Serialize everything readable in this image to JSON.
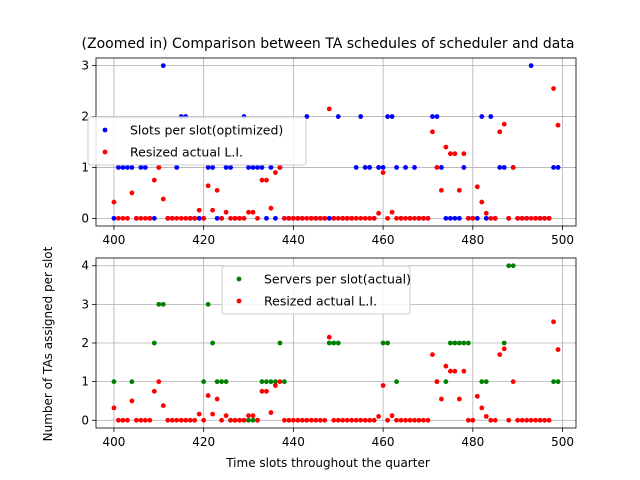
{
  "chart_data": [
    {
      "type": "scatter",
      "title": "(Zoomed in) Comparison between TA schedules of scheduler and data",
      "xlabel": "",
      "ylabel": "",
      "xlim": [
        396,
        503
      ],
      "ylim": [
        -0.15,
        3.15
      ],
      "xticks": [
        400,
        420,
        440,
        460,
        480,
        500
      ],
      "yticks": [
        0,
        1,
        2,
        3
      ],
      "grid": true,
      "legend": "center-left",
      "series": [
        {
          "name": "Slots per slot(optimized)",
          "color": "#0000ff",
          "x": [
            400,
            401,
            402,
            403,
            404,
            405,
            406,
            407,
            408,
            409,
            410,
            411,
            412,
            413,
            414,
            415,
            416,
            417,
            418,
            419,
            420,
            421,
            422,
            423,
            424,
            425,
            426,
            427,
            428,
            429,
            430,
            431,
            432,
            433,
            434,
            435,
            436,
            437,
            438,
            439,
            440,
            441,
            442,
            443,
            444,
            445,
            446,
            447,
            448,
            449,
            450,
            451,
            452,
            453,
            454,
            455,
            456,
            457,
            458,
            459,
            460,
            461,
            462,
            463,
            464,
            465,
            466,
            467,
            468,
            469,
            470,
            471,
            472,
            473,
            474,
            475,
            476,
            477,
            478,
            479,
            480,
            481,
            482,
            483,
            484,
            485,
            486,
            487,
            488,
            489,
            490,
            491,
            492,
            493,
            494,
            495,
            496,
            497,
            498,
            499
          ],
          "y": [
            0,
            1,
            1,
            1,
            1,
            0,
            1,
            1,
            0,
            0,
            1,
            3,
            0,
            0,
            1,
            2,
            2,
            0,
            0,
            0,
            0,
            1,
            1,
            0,
            0,
            1,
            1,
            0,
            0,
            2,
            1,
            1,
            1,
            1,
            0,
            1,
            0,
            1,
            0,
            0,
            0,
            0,
            0,
            2,
            0,
            0,
            0,
            0,
            0,
            0,
            2,
            0,
            0,
            0,
            1,
            2,
            1,
            1,
            0,
            1,
            1,
            2,
            2,
            1,
            0,
            1,
            0,
            1,
            0,
            0,
            0,
            2,
            2,
            1,
            0,
            0,
            0,
            0,
            1,
            0,
            0,
            0,
            2,
            0,
            2,
            0,
            1,
            1,
            0,
            1,
            0,
            0,
            0,
            3,
            0,
            0,
            0,
            0,
            1,
            1
          ]
        },
        {
          "name": "Resized actual L.I.",
          "color": "#ff0000",
          "x": [
            400,
            401,
            402,
            403,
            404,
            405,
            406,
            407,
            408,
            409,
            410,
            411,
            412,
            413,
            414,
            415,
            416,
            417,
            418,
            419,
            420,
            421,
            422,
            423,
            424,
            425,
            426,
            427,
            428,
            429,
            430,
            431,
            432,
            433,
            434,
            435,
            436,
            437,
            438,
            439,
            440,
            441,
            442,
            443,
            444,
            445,
            446,
            447,
            448,
            449,
            450,
            451,
            452,
            453,
            454,
            455,
            456,
            457,
            458,
            459,
            460,
            461,
            462,
            463,
            464,
            465,
            466,
            467,
            468,
            469,
            470,
            471,
            472,
            473,
            474,
            475,
            476,
            477,
            478,
            479,
            480,
            481,
            482,
            483,
            484,
            485,
            486,
            487,
            488,
            489,
            490,
            491,
            492,
            493,
            494,
            495,
            496,
            497,
            498,
            499
          ],
          "y": [
            0.32,
            0,
            0,
            0,
            0.5,
            0,
            0,
            0,
            0,
            0.75,
            1,
            0.38,
            0,
            0,
            0,
            0,
            0,
            0,
            0,
            0.16,
            0,
            0.64,
            0.16,
            0.55,
            0,
            0.12,
            0,
            0,
            0,
            0,
            0.12,
            0.12,
            0,
            0.75,
            0.75,
            0.2,
            0.9,
            1,
            0,
            0,
            0,
            0,
            0,
            0,
            0,
            0,
            0,
            0,
            2.15,
            0,
            0,
            0,
            0,
            0,
            0,
            0,
            0,
            0,
            0,
            0.1,
            0.9,
            0,
            0.12,
            0,
            0,
            0,
            0,
            0,
            0,
            0,
            0,
            1.7,
            1,
            0.55,
            1.4,
            1.27,
            1.27,
            0.55,
            1.27,
            0,
            0,
            0.62,
            0.32,
            0.1,
            0,
            0,
            1.7,
            1.85,
            0,
            1,
            0,
            0,
            0,
            0,
            0,
            0,
            0,
            0,
            2.55,
            1.83
          ]
        }
      ]
    },
    {
      "type": "scatter",
      "title": "",
      "xlabel": "Time slots throughout the quarter",
      "ylabel": "Number of TAs assigned per slot",
      "xlim": [
        396,
        503
      ],
      "ylim": [
        -0.2,
        4.2
      ],
      "xticks": [
        400,
        420,
        440,
        460,
        480,
        500
      ],
      "yticks": [
        0,
        1,
        2,
        3,
        4
      ],
      "grid": true,
      "legend": "top-center",
      "series": [
        {
          "name": "Servers per slot(actual)",
          "color": "#008000",
          "x": [
            400,
            404,
            409,
            410,
            411,
            420,
            421,
            422,
            423,
            424,
            425,
            426,
            427,
            428,
            429,
            430,
            431,
            432,
            433,
            434,
            435,
            436,
            437,
            438,
            448,
            449,
            450,
            460,
            461,
            463,
            472,
            474,
            475,
            476,
            477,
            478,
            479,
            482,
            483,
            487,
            488,
            489,
            498,
            499
          ],
          "y": [
            1,
            1,
            2,
            3,
            3,
            1,
            3,
            2,
            1,
            1,
            1,
            0,
            0,
            0,
            0,
            0,
            0,
            0,
            1,
            1,
            1,
            1,
            2,
            1,
            2,
            2,
            2,
            2,
            2,
            1,
            1,
            1,
            2,
            2,
            2,
            2,
            2,
            1,
            1,
            2,
            4,
            4,
            1,
            1
          ]
        },
        {
          "name": "Resized actual L.I.",
          "color": "#ff0000",
          "x": [
            400,
            401,
            402,
            403,
            404,
            405,
            406,
            407,
            408,
            409,
            410,
            411,
            412,
            413,
            414,
            415,
            416,
            417,
            418,
            419,
            420,
            421,
            422,
            423,
            424,
            425,
            426,
            427,
            428,
            429,
            430,
            431,
            432,
            433,
            434,
            435,
            436,
            437,
            438,
            439,
            440,
            441,
            442,
            443,
            444,
            445,
            446,
            447,
            448,
            449,
            450,
            451,
            452,
            453,
            454,
            455,
            456,
            457,
            458,
            459,
            460,
            461,
            462,
            463,
            464,
            465,
            466,
            467,
            468,
            469,
            470,
            471,
            472,
            473,
            474,
            475,
            476,
            477,
            478,
            479,
            480,
            481,
            482,
            483,
            484,
            485,
            486,
            487,
            488,
            489,
            490,
            491,
            492,
            493,
            494,
            495,
            496,
            497,
            498,
            499
          ],
          "y": [
            0.32,
            0,
            0,
            0,
            0.5,
            0,
            0,
            0,
            0,
            0.75,
            1,
            0.38,
            0,
            0,
            0,
            0,
            0,
            0,
            0,
            0.16,
            0,
            0.64,
            0.16,
            0.55,
            0,
            0.12,
            0,
            0,
            0,
            0,
            0.12,
            0.12,
            0,
            0.75,
            0.75,
            0.2,
            0.9,
            1,
            0,
            0,
            0,
            0,
            0,
            0,
            0,
            0,
            0,
            0,
            2.15,
            0,
            0,
            0,
            0,
            0,
            0,
            0,
            0,
            0,
            0,
            0.1,
            0.9,
            0,
            0.12,
            0,
            0,
            0,
            0,
            0,
            0,
            0,
            0,
            1.7,
            1,
            0.55,
            1.4,
            1.27,
            1.27,
            0.55,
            1.27,
            0,
            0,
            0.62,
            0.32,
            0.1,
            0,
            0,
            1.7,
            1.85,
            0,
            1,
            0,
            0,
            0,
            0,
            0,
            0,
            0,
            0,
            2.55,
            1.83
          ]
        }
      ]
    }
  ]
}
